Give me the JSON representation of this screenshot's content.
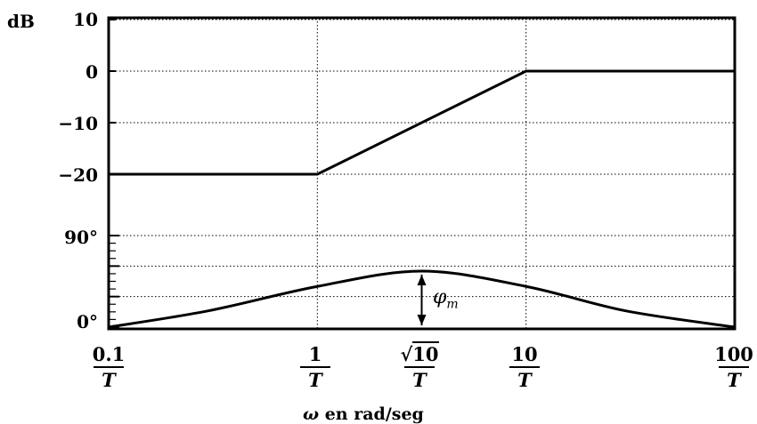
{
  "chart_data": [
    {
      "type": "line",
      "panel": "magnitude",
      "ylabel": "dB",
      "yticks": [
        "10",
        "0",
        "−10",
        "−20"
      ],
      "ytick_values": [
        10,
        0,
        -10,
        -20
      ],
      "ylim": [
        -25,
        10
      ],
      "xscale": "log",
      "xlim_wT": [
        0.1,
        100
      ],
      "grid": true,
      "series": [
        {
          "x_wT": [
            0.1,
            1,
            10,
            100
          ],
          "y_dB": [
            -20,
            -20,
            0,
            0
          ]
        }
      ]
    },
    {
      "type": "line",
      "panel": "phase",
      "yticks": [
        "90°",
        "0°"
      ],
      "ytick_values": [
        90,
        0
      ],
      "ylim_deg": [
        0,
        90
      ],
      "xscale": "log",
      "xlim_wT": [
        0.1,
        100
      ],
      "grid": true,
      "series": [
        {
          "x_wT": [
            0.1,
            0.3,
            1,
            3.1623,
            10,
            30,
            100
          ],
          "y_deg": [
            0,
            16,
            40,
            55,
            40,
            16,
            0
          ]
        }
      ],
      "annotation": {
        "x_wT": 3.1623,
        "label": "φ",
        "subscript": "m"
      }
    }
  ],
  "xaxis": {
    "ticks": [
      {
        "num": "0.1",
        "den": "T"
      },
      {
        "num": "1",
        "den": "T"
      },
      {
        "num": "√10",
        "den": "T",
        "radical": true,
        "radicand": "10"
      },
      {
        "num": "10",
        "den": "T"
      },
      {
        "num": "100",
        "den": "T"
      }
    ],
    "label_symbol": "ω",
    "label_text": " en rad/seg"
  },
  "colors": {
    "line": "#000000",
    "grid": "#000000",
    "background": "#ffffff"
  }
}
